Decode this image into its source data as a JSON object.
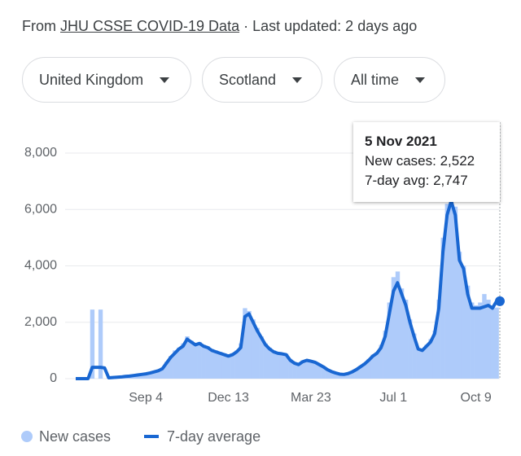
{
  "header": {
    "prefix": "From",
    "source": "JHU CSSE COVID-19 Data",
    "updated": "· Last updated: 2 days ago"
  },
  "filters": [
    "United Kingdom",
    "Scotland",
    "All time"
  ],
  "tooltip": {
    "date": "5 Nov 2021",
    "new_cases": "New cases: 2,522",
    "avg": "7-day avg: 2,747"
  },
  "chart_data": {
    "type": "bar",
    "categories": [
      null,
      null,
      null,
      null,
      null,
      null,
      null,
      null,
      null,
      null,
      null,
      null,
      null,
      null,
      null,
      null,
      null,
      "Sep 4",
      null,
      null,
      null,
      null,
      null,
      null,
      null,
      null,
      null,
      null,
      null,
      null,
      null,
      null,
      null,
      null,
      null,
      null,
      null,
      "Dec 13",
      null,
      null,
      null,
      null,
      null,
      null,
      null,
      null,
      null,
      null,
      null,
      null,
      null,
      null,
      null,
      null,
      null,
      null,
      null,
      "Mar 23",
      null,
      null,
      null,
      null,
      null,
      null,
      null,
      null,
      null,
      null,
      null,
      null,
      null,
      null,
      null,
      null,
      null,
      null,
      null,
      "Jul 1",
      null,
      null,
      null,
      null,
      null,
      null,
      null,
      null,
      null,
      null,
      null,
      null,
      null,
      null,
      null,
      null,
      null,
      null,
      null,
      "Oct 9",
      null,
      null,
      null,
      null,
      null
    ],
    "series": [
      {
        "name": "New cases",
        "type": "bar",
        "color": "#aecbfa",
        "values": [
          0,
          0,
          0,
          0,
          2450,
          0,
          2450,
          0,
          40,
          50,
          60,
          70,
          90,
          100,
          120,
          140,
          170,
          190,
          230,
          260,
          320,
          400,
          600,
          800,
          1000,
          1100,
          1250,
          1500,
          1350,
          1250,
          1300,
          1200,
          1150,
          1050,
          1000,
          950,
          900,
          850,
          900,
          1000,
          1250,
          2500,
          2400,
          2100,
          1800,
          1500,
          1250,
          1100,
          1000,
          950,
          900,
          880,
          700,
          580,
          520,
          650,
          680,
          640,
          600,
          520,
          440,
          340,
          270,
          210,
          170,
          160,
          190,
          260,
          340,
          450,
          560,
          700,
          850,
          950,
          1200,
          1700,
          2700,
          3600,
          3800,
          3200,
          2800,
          2100,
          1600,
          1100,
          1050,
          1200,
          1400,
          1700,
          2800,
          5000,
          6200,
          6400,
          6100,
          4500,
          4000,
          3300,
          2700,
          2600,
          2700,
          3000,
          2800,
          2600,
          2522
        ]
      },
      {
        "name": "7-day average",
        "type": "line",
        "color": "#1967d2",
        "values": [
          0,
          0,
          0,
          0,
          400,
          400,
          400,
          380,
          30,
          40,
          50,
          60,
          80,
          90,
          110,
          130,
          150,
          170,
          200,
          240,
          280,
          350,
          550,
          750,
          900,
          1050,
          1150,
          1400,
          1300,
          1200,
          1250,
          1150,
          1100,
          1000,
          950,
          900,
          850,
          800,
          850,
          950,
          1100,
          2200,
          2300,
          2000,
          1700,
          1450,
          1200,
          1050,
          950,
          900,
          880,
          850,
          650,
          550,
          500,
          600,
          650,
          620,
          580,
          500,
          420,
          320,
          250,
          200,
          160,
          150,
          180,
          240,
          320,
          420,
          520,
          650,
          800,
          900,
          1100,
          1500,
          2300,
          3100,
          3400,
          3000,
          2600,
          2000,
          1500,
          1050,
          1000,
          1150,
          1300,
          1600,
          2500,
          4500,
          5800,
          6300,
          5800,
          4200,
          3900,
          3000,
          2500,
          2500,
          2500,
          2550,
          2600,
          2500,
          2747
        ]
      }
    ],
    "ylim": [
      0,
      8000
    ],
    "yticks": [
      0,
      {
        "value": 2000,
        "label": "2,000"
      },
      {
        "value": 4000,
        "label": "4,000"
      },
      {
        "value": 6000,
        "label": "6,000"
      },
      {
        "value": 8000,
        "label": "8,000"
      }
    ],
    "grid": true
  }
}
